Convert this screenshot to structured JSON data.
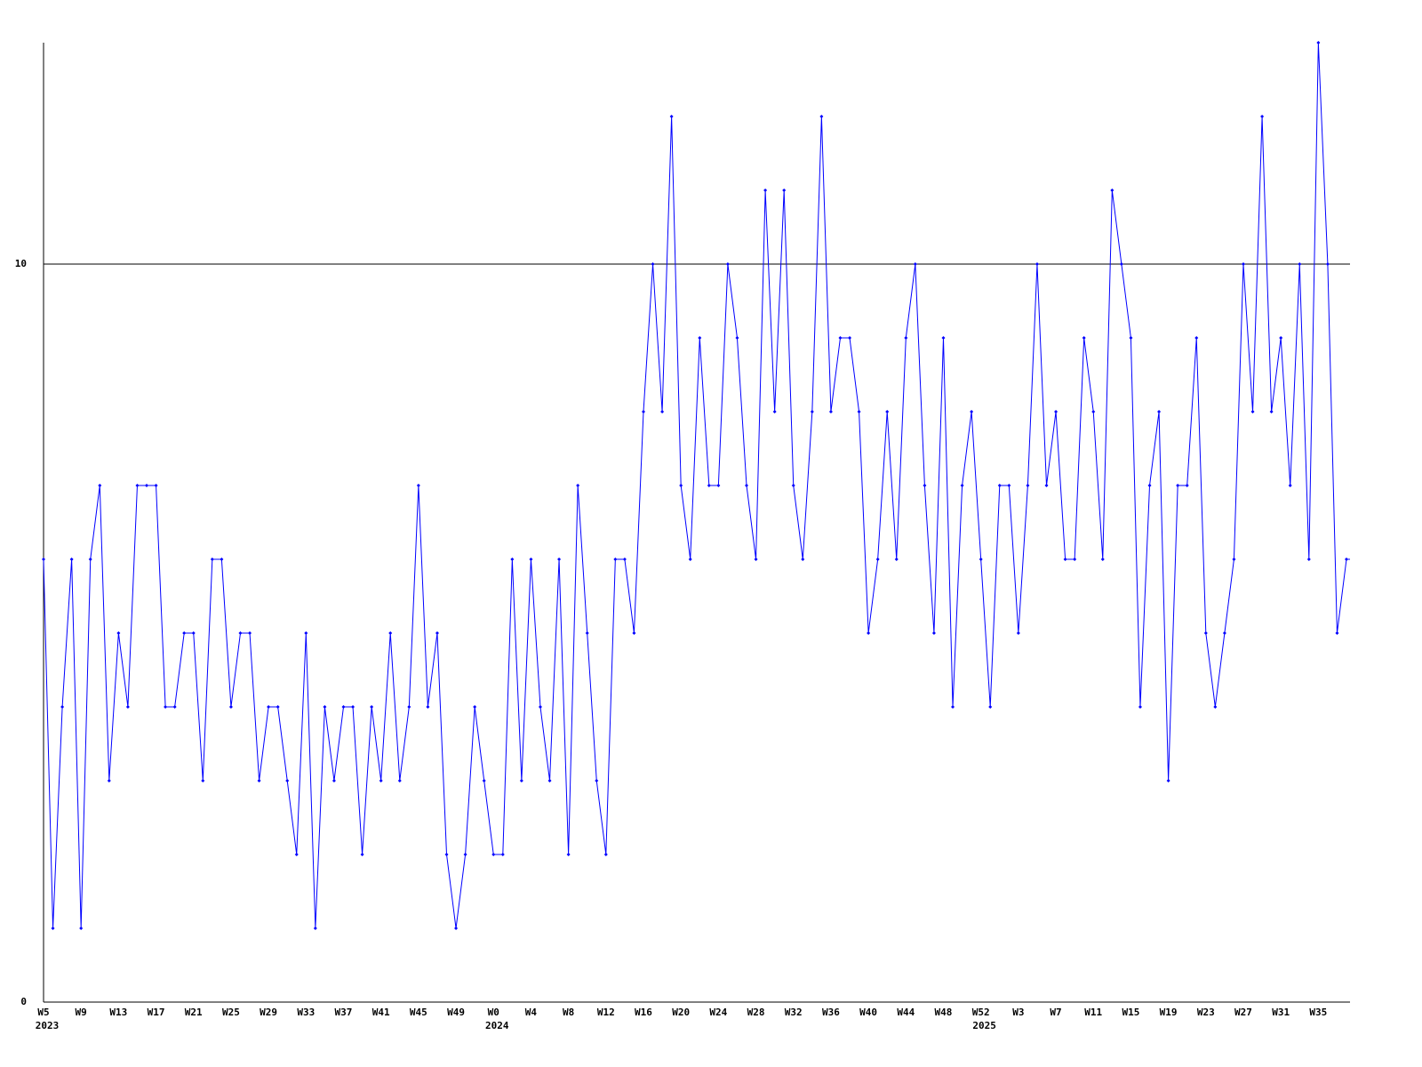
{
  "chart_data": {
    "type": "line",
    "categories": [
      "W5",
      null,
      null,
      null,
      "W9",
      null,
      null,
      null,
      "W13",
      null,
      null,
      null,
      "W17",
      null,
      null,
      null,
      "W21",
      null,
      null,
      null,
      "W25",
      null,
      null,
      null,
      "W29",
      null,
      null,
      null,
      "W33",
      null,
      null,
      null,
      "W37",
      null,
      null,
      null,
      "W41",
      null,
      null,
      null,
      "W45",
      null,
      null,
      null,
      "W49",
      null,
      null,
      null,
      "W0",
      null,
      null,
      null,
      "W4",
      null,
      null,
      null,
      "W8",
      null,
      null,
      null,
      "W12",
      null,
      null,
      null,
      "W16",
      null,
      null,
      null,
      "W20",
      null,
      null,
      null,
      "W24",
      null,
      null,
      null,
      "W28",
      null,
      null,
      null,
      "W32",
      null,
      null,
      null,
      "W36",
      null,
      null,
      null,
      "W40",
      null,
      null,
      null,
      "W44",
      null,
      null,
      null,
      "W48",
      null,
      null,
      null,
      "W52",
      null,
      null,
      null,
      "W3",
      null,
      null,
      null,
      "W7",
      null,
      null,
      null,
      "W11",
      null,
      null,
      null,
      "W15",
      null,
      null,
      null,
      "W19",
      null,
      null,
      null,
      "W23",
      null,
      null,
      null,
      "W27",
      null,
      null,
      null,
      "W31",
      null,
      null,
      null,
      "W35",
      null,
      null,
      null
    ],
    "category_groups": [
      "2023",
      null,
      null,
      null,
      null,
      null,
      null,
      null,
      null,
      null,
      null,
      null,
      null,
      null,
      null,
      null,
      null,
      null,
      null,
      null,
      null,
      null,
      null,
      null,
      null,
      null,
      null,
      null,
      null,
      null,
      null,
      null,
      null,
      null,
      null,
      null,
      null,
      null,
      null,
      null,
      null,
      null,
      null,
      null,
      null,
      null,
      null,
      null,
      "2024",
      null,
      null,
      null,
      null,
      null,
      null,
      null,
      null,
      null,
      null,
      null,
      null,
      null,
      null,
      null,
      null,
      null,
      null,
      null,
      null,
      null,
      null,
      null,
      null,
      null,
      null,
      null,
      null,
      null,
      null,
      null,
      null,
      null,
      null,
      null,
      null,
      null,
      null,
      null,
      null,
      null,
      null,
      null,
      null,
      null,
      null,
      null,
      null,
      null,
      null,
      null,
      "2025",
      null,
      null,
      null,
      null,
      null,
      null,
      null,
      null,
      null,
      null,
      null,
      null,
      null,
      null,
      null,
      null,
      null,
      null,
      null,
      null,
      null,
      null,
      null,
      null,
      null,
      null,
      null,
      null,
      null,
      null,
      null,
      null,
      null,
      null,
      null,
      null,
      null,
      null
    ],
    "series": [
      {
        "color": "#0000ff",
        "values": [
          6,
          1,
          4,
          6,
          1,
          6,
          7,
          3,
          5,
          4,
          7,
          7,
          7,
          4,
          4,
          5,
          5,
          3,
          6,
          6,
          4,
          5,
          5,
          3,
          4,
          4,
          3,
          2,
          5,
          1,
          4,
          3,
          4,
          4,
          2,
          4,
          3,
          5,
          3,
          4,
          7,
          4,
          5,
          2,
          1,
          2,
          4,
          3,
          2,
          2,
          6,
          3,
          6,
          4,
          3,
          6,
          2,
          7,
          5,
          3,
          2,
          6,
          6,
          5,
          8,
          10,
          8,
          12,
          7,
          6,
          9,
          7,
          7,
          10,
          9,
          7,
          6,
          11,
          8,
          11,
          7,
          6,
          8,
          12,
          8,
          9,
          9,
          8,
          5,
          6,
          8,
          6,
          9,
          10,
          7,
          5,
          9,
          4,
          7,
          8,
          6,
          4,
          7,
          7,
          5,
          7,
          10,
          7,
          8,
          6,
          6,
          9,
          8,
          6,
          11,
          10,
          9,
          4,
          7,
          8,
          3,
          7,
          7,
          9,
          5,
          4,
          5,
          6,
          10,
          8,
          12,
          8,
          9,
          7,
          10,
          6,
          13,
          10,
          5,
          6
        ]
      }
    ],
    "ylim": [
      0,
      13
    ],
    "yticks": [
      0,
      10
    ],
    "grid": true
  }
}
